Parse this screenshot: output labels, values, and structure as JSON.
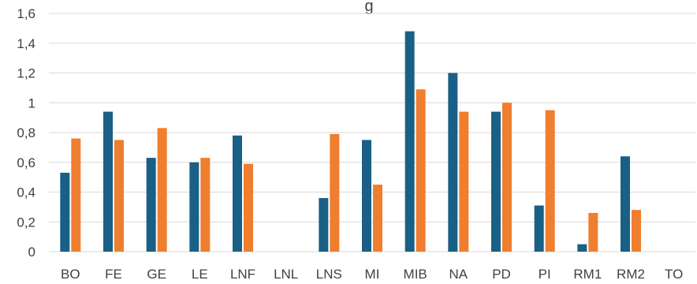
{
  "chart_data": {
    "type": "bar",
    "title": "",
    "title_fragment": "g",
    "xlabel": "",
    "ylabel": "",
    "categories": [
      "BO",
      "FE",
      "GE",
      "LE",
      "LNF",
      "LNL",
      "LNS",
      "MI",
      "MIB",
      "NA",
      "PD",
      "PI",
      "RM1",
      "RM2",
      "TO"
    ],
    "series": [
      {
        "color": "#1a5f85",
        "values": [
          0.53,
          0.94,
          0.63,
          0.6,
          0.78,
          null,
          0.36,
          0.75,
          1.48,
          1.2,
          0.94,
          0.31,
          0.05,
          0.64,
          null
        ]
      },
      {
        "color": "#ef7e2f",
        "values": [
          0.76,
          0.75,
          0.83,
          0.63,
          0.59,
          null,
          0.79,
          0.45,
          1.09,
          0.94,
          1.0,
          0.95,
          0.26,
          0.28,
          null
        ]
      }
    ],
    "ylim": [
      0,
      1.6
    ],
    "yticks": [
      "0",
      "0,2",
      "0,4",
      "0,6",
      "0,8",
      "1",
      "1,2",
      "1,4",
      "1,6"
    ],
    "grid": true,
    "legend": "none"
  }
}
